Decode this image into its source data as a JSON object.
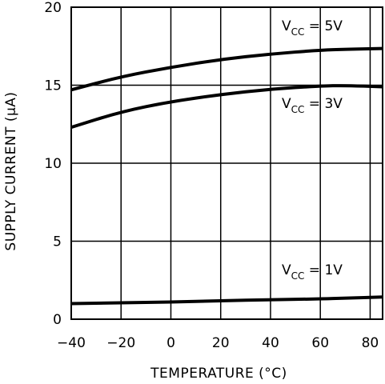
{
  "chart_data": {
    "type": "line",
    "title": "",
    "xlabel": "TEMPERATURE (°C)",
    "ylabel": "SUPPLY CURRENT (µA)",
    "xlim": [
      -40,
      85
    ],
    "ylim": [
      0,
      20
    ],
    "grid": true,
    "x_ticks": [
      -40,
      -20,
      0,
      20,
      40,
      60,
      80
    ],
    "y_ticks": [
      0,
      5,
      10,
      15,
      20
    ],
    "x": [
      -40,
      -20,
      0,
      20,
      40,
      60,
      70,
      85
    ],
    "series": [
      {
        "name": "VCC = 5V",
        "label_main": "V",
        "label_sub": "CC",
        "label_rest": " = 5V",
        "values": [
          14.7,
          15.55,
          16.15,
          16.65,
          17.0,
          17.25,
          17.3,
          17.35
        ]
      },
      {
        "name": "VCC = 3V",
        "label_main": "V",
        "label_sub": "CC",
        "label_rest": " = 3V",
        "values": [
          12.3,
          13.3,
          13.95,
          14.4,
          14.75,
          14.95,
          14.98,
          14.9
        ]
      },
      {
        "name": "VCC = 1V",
        "label_main": "V",
        "label_sub": "CC",
        "label_rest": " = 1V",
        "values": [
          1.0,
          1.05,
          1.1,
          1.18,
          1.25,
          1.3,
          1.35,
          1.42
        ]
      }
    ],
    "colors": {
      "line": "#000000",
      "grid": "#000000",
      "background": "#ffffff"
    }
  }
}
